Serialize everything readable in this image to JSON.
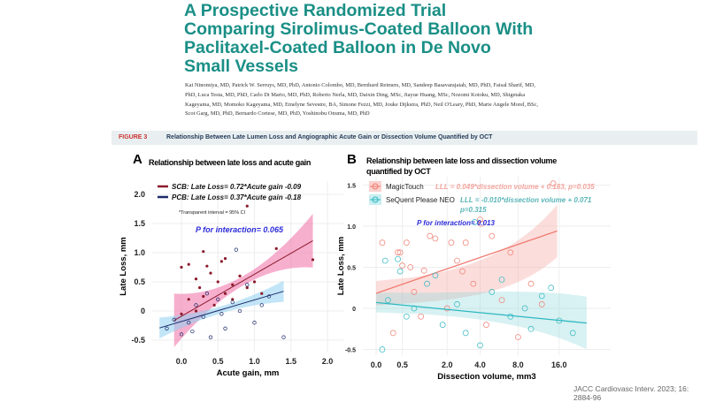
{
  "header": {
    "title": "A Prospective Randomized Trial Comparing Sirolimus-Coated Balloon With Paclitaxel-Coated Balloon in De Novo Small Vessels",
    "authors": "Kai Ninomiya, MD, Patrick W. Serruys, MD, PhD, Antonio Colombo, MD, Bernhard Reimers, MD, Sandeep Basavarajaiah, MD, PhD, Faisal Sharif, MD, PhD, Luca Testa, MD, PhD, Carlo Di Mario, MD, PhD, Roberto Nerla, MD, Daixin Ding, MSc, Jiayue Huang, MSc, Nozomi Kotoku, MD, Shigetaka Kageyama, MD, Momoko Kageyama, MD, Emelyne Sevestre, BA, Simone Fezzi, MD, Jouke Dijkstra, PhD, Neil O'Leary, PhD, Marie Angele Morel, BSc, Scot Garg, MD, PhD, Bernardo Cortese, MD, PhD, Yoshinobu Onuma, MD, PhD"
  },
  "figure": {
    "label": "FIGURE 3",
    "caption": "Relationship Between Late Lumen Loss and Angiographic Acute Gain or Dissection Volume Quantified by OCT"
  },
  "citation": "JACC Cardiovasc Interv. 2023; 16: 2884-96",
  "chart_data": [
    {
      "type": "scatter",
      "panel": "A",
      "title": "Relationship between late loss and acute gain",
      "xlabel": "Acute gain, mm",
      "ylabel": "Late Loss, mm",
      "xticks": [
        "0.0",
        "0.5",
        "1.0",
        "1.5",
        "2.0"
      ],
      "xtick_values": [
        0,
        0.5,
        1,
        1.5,
        2
      ],
      "yticks": [
        "2.0",
        "1.5",
        "1.0",
        "0.5",
        "0",
        "-0.5"
      ],
      "ytick_values": [
        2,
        1.5,
        1,
        0.5,
        0,
        -0.5
      ],
      "xlim": [
        -0.3,
        2.0
      ],
      "ylim": [
        -0.7,
        2.2
      ],
      "legend": [
        "SCB: Late Loss= 0.72*Acute gain -0.09",
        "PCB: Late Loss= 0.37*Acute gain -0.18"
      ],
      "note": "*Transparent interval = 95% CI",
      "annotation": "P for interaction= 0.065",
      "series": [
        {
          "name": "SCB",
          "color": "#8b1a2b",
          "band": "#f06ea6",
          "slope": 0.72,
          "intercept": -0.09,
          "xrange": [
            -0.1,
            1.8
          ],
          "points": [
            [
              1.8,
              0.88
            ],
            [
              1.3,
              1.07
            ],
            [
              0.9,
              1.8
            ],
            [
              0.3,
              1.02
            ],
            [
              0.6,
              0.9
            ],
            [
              0.55,
              0.85
            ],
            [
              0.35,
              0.77
            ],
            [
              0.1,
              0.8
            ],
            [
              0.0,
              0.75
            ],
            [
              0.4,
              0.65
            ],
            [
              0.2,
              0.55
            ],
            [
              0.5,
              0.5
            ],
            [
              0.7,
              0.45
            ],
            [
              0.8,
              0.6
            ],
            [
              0.9,
              0.4
            ],
            [
              0.6,
              0.3
            ],
            [
              0.3,
              0.25
            ],
            [
              0.1,
              0.2
            ],
            [
              0.45,
              0.1
            ],
            [
              0.2,
              0.0
            ],
            [
              0.0,
              -0.05
            ],
            [
              0.7,
              0.2
            ],
            [
              1.0,
              0.5
            ],
            [
              1.1,
              0.3
            ],
            [
              0.25,
              0.4
            ]
          ]
        },
        {
          "name": "PCB",
          "color": "#1b2a6b",
          "band": "#8fd0f0",
          "slope": 0.37,
          "intercept": -0.18,
          "xrange": [
            -0.3,
            1.4
          ],
          "points": [
            [
              0.75,
              1.05
            ],
            [
              1.4,
              -0.45
            ],
            [
              0.9,
              0.45
            ],
            [
              0.5,
              0.2
            ],
            [
              0.3,
              -0.1
            ],
            [
              0.1,
              -0.2
            ],
            [
              0.0,
              -0.4
            ],
            [
              -0.2,
              -0.3
            ],
            [
              0.4,
              -0.45
            ],
            [
              0.6,
              -0.3
            ],
            [
              0.2,
              0.1
            ],
            [
              0.8,
              0.0
            ],
            [
              1.1,
              0.1
            ],
            [
              1.0,
              -0.2
            ],
            [
              0.35,
              0.3
            ],
            [
              0.55,
              -0.05
            ],
            [
              0.15,
              -0.35
            ],
            [
              0.7,
              0.15
            ],
            [
              1.2,
              0.25
            ],
            [
              -0.1,
              -0.15
            ]
          ]
        }
      ]
    },
    {
      "type": "scatter",
      "panel": "B",
      "title": "Relationship between late loss and dissection volume quantified by OCT",
      "xlabel": "Dissection volume, mm3",
      "ylabel": "Late Loss, mm",
      "xticks": [
        "0.0",
        "0.5",
        "2.0",
        "4.0",
        "8.0",
        "16.0"
      ],
      "xtick_values": [
        0,
        0.5,
        2,
        4,
        8,
        16
      ],
      "yticks": [
        "1.5",
        "1.0",
        "0.5",
        "0",
        "-0.5"
      ],
      "ytick_values": [
        1.5,
        1,
        0.5,
        0,
        -0.5
      ],
      "xlim": [
        0,
        25
      ],
      "ylim": [
        -0.55,
        1.6
      ],
      "annotation": "P for interaction= 0.013",
      "series": [
        {
          "name": "MagicTouch",
          "eq": "LLL = 0.049*dissection volume + 0.183, p=0.035",
          "color": "#f07b70",
          "slope": 0.049,
          "intercept": 0.183,
          "points": [
            [
              0.1,
              0.8
            ],
            [
              0.4,
              0.68
            ],
            [
              0.45,
              0.68
            ],
            [
              0.6,
              0.8
            ],
            [
              0.5,
              0.52
            ],
            [
              0.7,
              0.5
            ],
            [
              1.3,
              0.88
            ],
            [
              1.5,
              0.85
            ],
            [
              2.2,
              0.8
            ],
            [
              3,
              0.8
            ],
            [
              2.5,
              0.58
            ],
            [
              4,
              1.08
            ],
            [
              4.1,
              1.03
            ],
            [
              5,
              0.88
            ],
            [
              7,
              0.68
            ],
            [
              14.5,
              1.52
            ],
            [
              1.1,
              0.46
            ],
            [
              3.5,
              0.3
            ],
            [
              0.8,
              0.2
            ],
            [
              6,
              0.1
            ],
            [
              10,
              0.3
            ],
            [
              2,
              0.0
            ],
            [
              1,
              -0.1
            ],
            [
              4.5,
              -0.2
            ],
            [
              0.3,
              -0.3
            ],
            [
              8,
              -0.35
            ],
            [
              12,
              0.05
            ],
            [
              2.8,
              0.45
            ]
          ]
        },
        {
          "name": "SeQuent Please NEO",
          "eq": "LLL = -0.010*dissection volume + 0.071",
          "p": "p=0.315",
          "color": "#2cb8c0",
          "slope": -0.01,
          "intercept": 0.071,
          "points": [
            [
              0.15,
              0.58
            ],
            [
              0.4,
              0.6
            ],
            [
              0.45,
              0.45
            ],
            [
              3.6,
              1.05
            ],
            [
              0.2,
              0.1
            ],
            [
              0.6,
              -0.1
            ],
            [
              1.2,
              0.3
            ],
            [
              1.8,
              -0.2
            ],
            [
              2.5,
              0.05
            ],
            [
              3,
              -0.3
            ],
            [
              5,
              0.2
            ],
            [
              7,
              -0.1
            ],
            [
              9,
              0.0
            ],
            [
              12,
              0.15
            ],
            [
              16,
              -0.15
            ],
            [
              20,
              -0.3
            ],
            [
              0.1,
              -0.5
            ],
            [
              1.5,
              0.4
            ],
            [
              4,
              -0.45
            ],
            [
              6,
              0.35
            ],
            [
              0.8,
              0.0
            ],
            [
              14,
              0.25
            ],
            [
              10,
              -0.25
            ]
          ]
        }
      ]
    }
  ]
}
